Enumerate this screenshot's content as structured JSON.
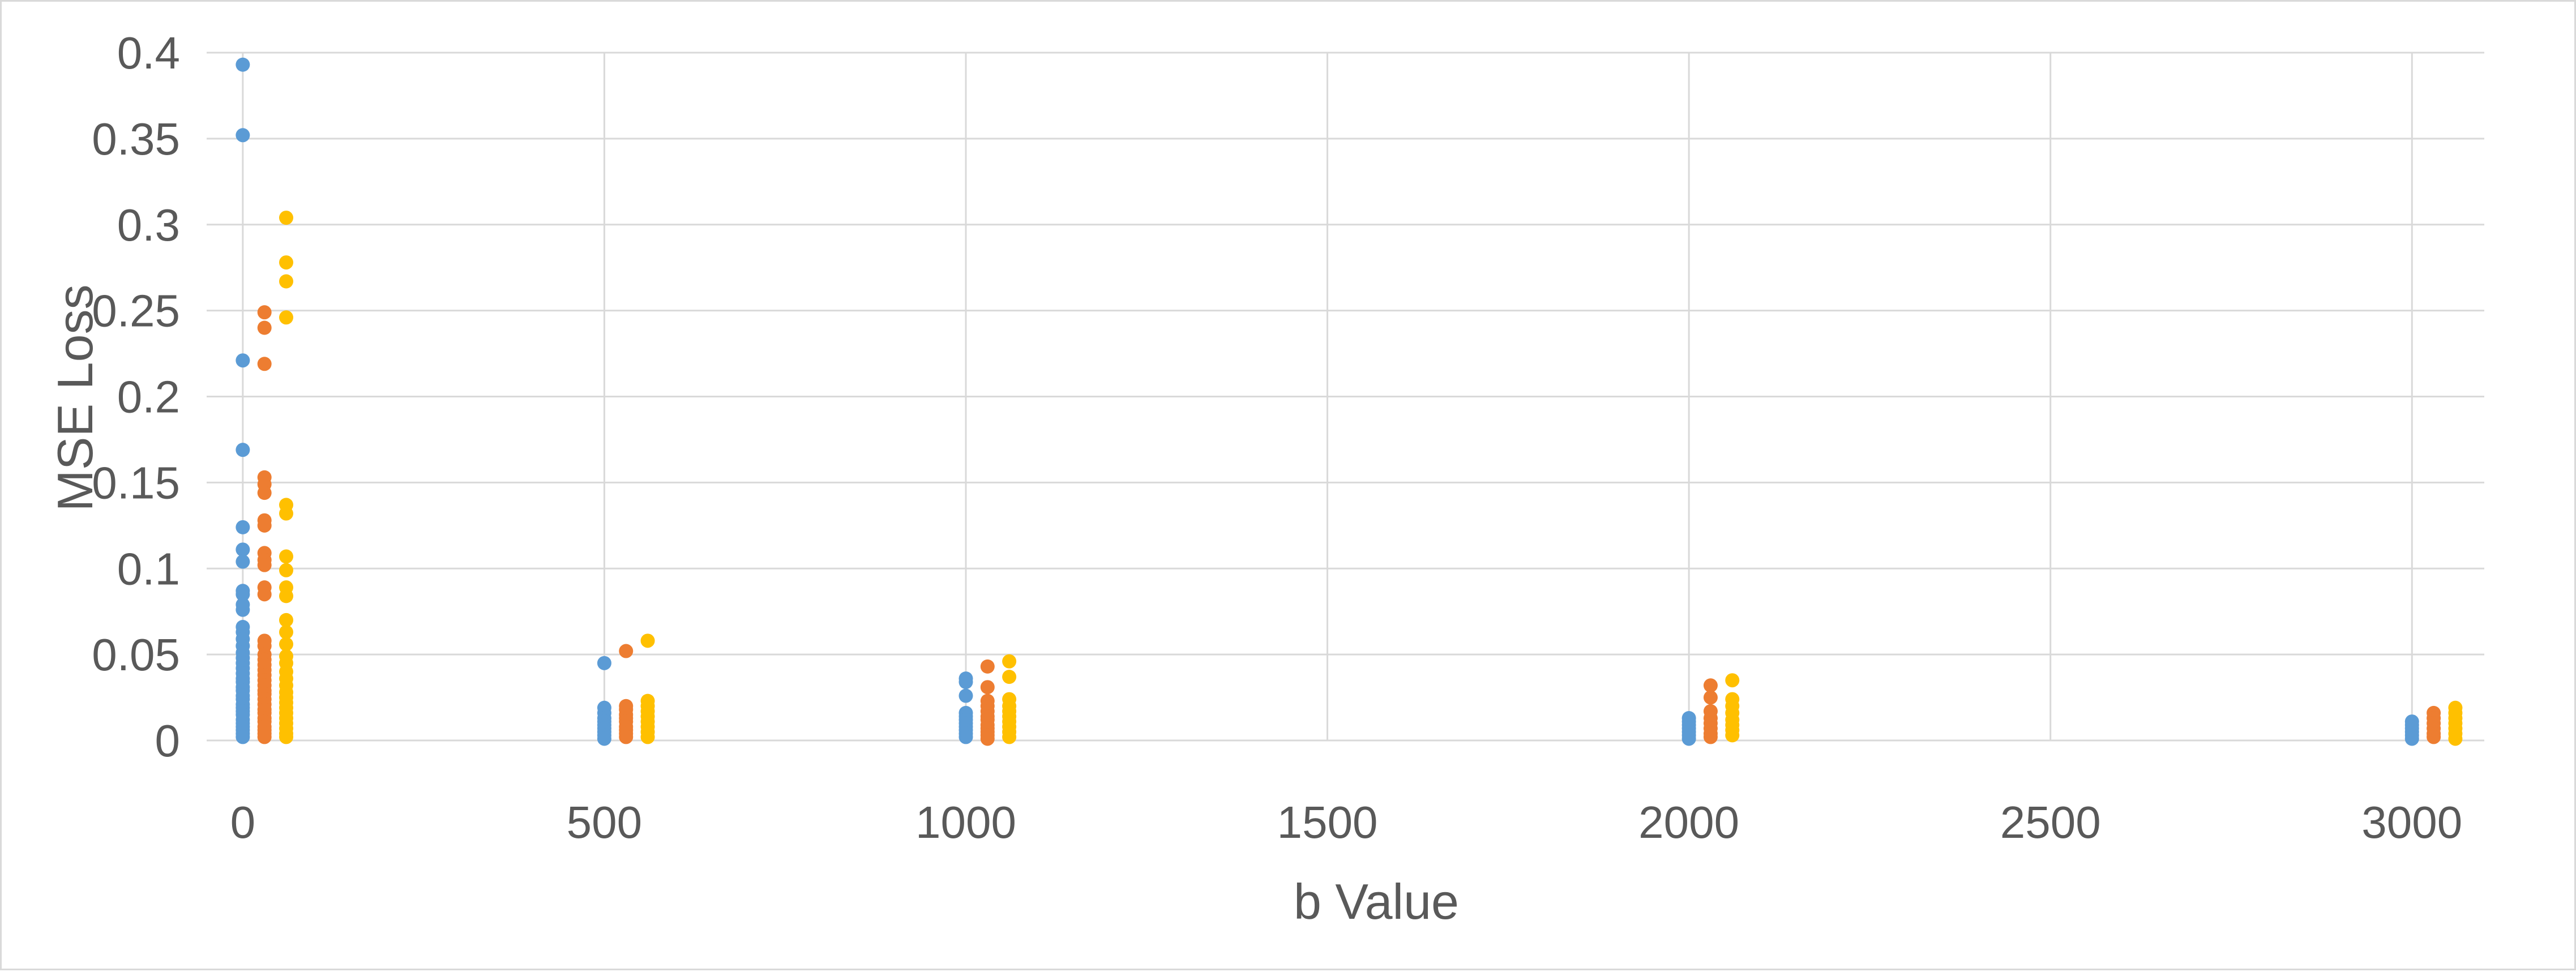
{
  "chart_data": {
    "type": "scatter",
    "title": "",
    "xlabel": "b Value",
    "ylabel": "MSE Loss",
    "xlim": [
      -50,
      3100
    ],
    "ylim": [
      0,
      0.4
    ],
    "grid": true,
    "x_ticks": [
      "0",
      "500",
      "1000",
      "1500",
      "2000",
      "2500",
      "3000"
    ],
    "x_tick_values": [
      0,
      500,
      1000,
      1500,
      2000,
      2500,
      3000
    ],
    "y_ticks": [
      "0",
      "0.05",
      "0.1",
      "0.15",
      "0.2",
      "0.25",
      "0.3",
      "0.35",
      "0.4"
    ],
    "y_tick_values": [
      0,
      0.05,
      0.1,
      0.15,
      0.2,
      0.25,
      0.3,
      0.35,
      0.4
    ],
    "series": [
      {
        "color": "#5b9bd5",
        "points": [
          [
            0,
            0.393
          ],
          [
            0,
            0.352
          ],
          [
            0,
            0.221
          ],
          [
            0,
            0.169
          ],
          [
            0,
            0.124
          ],
          [
            0,
            0.111
          ],
          [
            0,
            0.104
          ],
          [
            0,
            0.087
          ],
          [
            0,
            0.085
          ],
          [
            0,
            0.079
          ],
          [
            0,
            0.076
          ],
          [
            0,
            0.066
          ],
          [
            0,
            0.063
          ],
          [
            0,
            0.059
          ],
          [
            0,
            0.055
          ],
          [
            0,
            0.051
          ],
          [
            0,
            0.048
          ],
          [
            0,
            0.045
          ],
          [
            0,
            0.042
          ],
          [
            0,
            0.039
          ],
          [
            0,
            0.036
          ],
          [
            0,
            0.034
          ],
          [
            0,
            0.031
          ],
          [
            0,
            0.029
          ],
          [
            0,
            0.026
          ],
          [
            0,
            0.024
          ],
          [
            0,
            0.021
          ],
          [
            0,
            0.019
          ],
          [
            0,
            0.017
          ],
          [
            0,
            0.015
          ],
          [
            0,
            0.012
          ],
          [
            0,
            0.01
          ],
          [
            0,
            0.008
          ],
          [
            0,
            0.006
          ],
          [
            0,
            0.004
          ],
          [
            0,
            0.002
          ],
          [
            500,
            0.045
          ],
          [
            500,
            0.019
          ],
          [
            500,
            0.016
          ],
          [
            500,
            0.013
          ],
          [
            500,
            0.011
          ],
          [
            500,
            0.009
          ],
          [
            500,
            0.007
          ],
          [
            500,
            0.005
          ],
          [
            500,
            0.003
          ],
          [
            500,
            0.001
          ],
          [
            1000,
            0.036
          ],
          [
            1000,
            0.034
          ],
          [
            1000,
            0.026
          ],
          [
            1000,
            0.016
          ],
          [
            1000,
            0.014
          ],
          [
            1000,
            0.012
          ],
          [
            1000,
            0.01
          ],
          [
            1000,
            0.008
          ],
          [
            1000,
            0.006
          ],
          [
            1000,
            0.004
          ],
          [
            1000,
            0.002
          ],
          [
            2000,
            0.013
          ],
          [
            2000,
            0.011
          ],
          [
            2000,
            0.009
          ],
          [
            2000,
            0.007
          ],
          [
            2000,
            0.005
          ],
          [
            2000,
            0.003
          ],
          [
            2000,
            0.001
          ],
          [
            3000,
            0.011
          ],
          [
            3000,
            0.009
          ],
          [
            3000,
            0.007
          ],
          [
            3000,
            0.005
          ],
          [
            3000,
            0.003
          ],
          [
            3000,
            0.001
          ]
        ]
      },
      {
        "color": "#ed7d31",
        "points": [
          [
            30,
            0.249
          ],
          [
            30,
            0.24
          ],
          [
            30,
            0.219
          ],
          [
            30,
            0.153
          ],
          [
            30,
            0.149
          ],
          [
            30,
            0.144
          ],
          [
            30,
            0.128
          ],
          [
            30,
            0.125
          ],
          [
            30,
            0.109
          ],
          [
            30,
            0.105
          ],
          [
            30,
            0.102
          ],
          [
            30,
            0.089
          ],
          [
            30,
            0.085
          ],
          [
            30,
            0.058
          ],
          [
            30,
            0.055
          ],
          [
            30,
            0.05
          ],
          [
            30,
            0.047
          ],
          [
            30,
            0.044
          ],
          [
            30,
            0.041
          ],
          [
            30,
            0.038
          ],
          [
            30,
            0.035
          ],
          [
            30,
            0.032
          ],
          [
            30,
            0.029
          ],
          [
            30,
            0.027
          ],
          [
            30,
            0.024
          ],
          [
            30,
            0.021
          ],
          [
            30,
            0.018
          ],
          [
            30,
            0.016
          ],
          [
            30,
            0.013
          ],
          [
            30,
            0.011
          ],
          [
            30,
            0.008
          ],
          [
            30,
            0.006
          ],
          [
            30,
            0.004
          ],
          [
            30,
            0.002
          ],
          [
            530,
            0.052
          ],
          [
            530,
            0.02
          ],
          [
            530,
            0.018
          ],
          [
            530,
            0.015
          ],
          [
            530,
            0.013
          ],
          [
            530,
            0.011
          ],
          [
            530,
            0.008
          ],
          [
            530,
            0.006
          ],
          [
            530,
            0.004
          ],
          [
            530,
            0.002
          ],
          [
            1030,
            0.043
          ],
          [
            1030,
            0.031
          ],
          [
            1030,
            0.023
          ],
          [
            1030,
            0.02
          ],
          [
            1030,
            0.017
          ],
          [
            1030,
            0.014
          ],
          [
            1030,
            0.012
          ],
          [
            1030,
            0.009
          ],
          [
            1030,
            0.007
          ],
          [
            1030,
            0.005
          ],
          [
            1030,
            0.003
          ],
          [
            1030,
            0.001
          ],
          [
            2030,
            0.032
          ],
          [
            2030,
            0.025
          ],
          [
            2030,
            0.017
          ],
          [
            2030,
            0.013
          ],
          [
            2030,
            0.01
          ],
          [
            2030,
            0.007
          ],
          [
            2030,
            0.004
          ],
          [
            2030,
            0.002
          ],
          [
            3030,
            0.016
          ],
          [
            3030,
            0.013
          ],
          [
            3030,
            0.01
          ],
          [
            3030,
            0.007
          ],
          [
            3030,
            0.004
          ],
          [
            3030,
            0.002
          ]
        ]
      },
      {
        "color": "#ffc000",
        "points": [
          [
            60,
            0.304
          ],
          [
            60,
            0.278
          ],
          [
            60,
            0.267
          ],
          [
            60,
            0.246
          ],
          [
            60,
            0.137
          ],
          [
            60,
            0.132
          ],
          [
            60,
            0.107
          ],
          [
            60,
            0.099
          ],
          [
            60,
            0.089
          ],
          [
            60,
            0.084
          ],
          [
            60,
            0.07
          ],
          [
            60,
            0.063
          ],
          [
            60,
            0.056
          ],
          [
            60,
            0.049
          ],
          [
            60,
            0.045
          ],
          [
            60,
            0.04
          ],
          [
            60,
            0.036
          ],
          [
            60,
            0.032
          ],
          [
            60,
            0.028
          ],
          [
            60,
            0.025
          ],
          [
            60,
            0.022
          ],
          [
            60,
            0.019
          ],
          [
            60,
            0.016
          ],
          [
            60,
            0.013
          ],
          [
            60,
            0.01
          ],
          [
            60,
            0.007
          ],
          [
            60,
            0.004
          ],
          [
            60,
            0.002
          ],
          [
            560,
            0.058
          ],
          [
            560,
            0.023
          ],
          [
            560,
            0.02
          ],
          [
            560,
            0.017
          ],
          [
            560,
            0.014
          ],
          [
            560,
            0.011
          ],
          [
            560,
            0.008
          ],
          [
            560,
            0.005
          ],
          [
            560,
            0.002
          ],
          [
            1060,
            0.046
          ],
          [
            1060,
            0.037
          ],
          [
            1060,
            0.024
          ],
          [
            1060,
            0.02
          ],
          [
            1060,
            0.017
          ],
          [
            1060,
            0.014
          ],
          [
            1060,
            0.011
          ],
          [
            1060,
            0.008
          ],
          [
            1060,
            0.005
          ],
          [
            1060,
            0.002
          ],
          [
            2060,
            0.035
          ],
          [
            2060,
            0.024
          ],
          [
            2060,
            0.02
          ],
          [
            2060,
            0.016
          ],
          [
            2060,
            0.012
          ],
          [
            2060,
            0.009
          ],
          [
            2060,
            0.006
          ],
          [
            2060,
            0.003
          ],
          [
            3060,
            0.019
          ],
          [
            3060,
            0.016
          ],
          [
            3060,
            0.013
          ],
          [
            3060,
            0.01
          ],
          [
            3060,
            0.007
          ],
          [
            3060,
            0.004
          ],
          [
            3060,
            0.001
          ]
        ]
      }
    ]
  }
}
